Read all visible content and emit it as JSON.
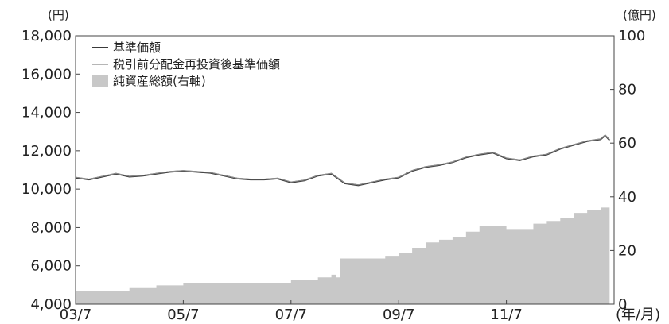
{
  "chart_data": {
    "type": "line",
    "title": "",
    "left_unit": "(円)",
    "right_unit": "(億円)",
    "x_unit": "(年/月)",
    "x_ticks": [
      "03/7",
      "05/7",
      "07/7",
      "09/7",
      "11/7"
    ],
    "y_left": {
      "min": 4000,
      "max": 18000,
      "ticks": [
        "4,000",
        "6,000",
        "8,000",
        "10,000",
        "12,000",
        "14,000",
        "16,000",
        "18,000"
      ]
    },
    "y_right": {
      "min": 0,
      "max": 100,
      "ticks": [
        "0",
        "20",
        "40",
        "60",
        "80",
        "100"
      ]
    },
    "legend_position": "top-left",
    "grid": false,
    "series": [
      {
        "name": "基準価額",
        "axis": "left",
        "color": "#3a3a3a",
        "x": [
          "2003-07",
          "2003-10",
          "2004-01",
          "2004-04",
          "2004-07",
          "2004-10",
          "2005-01",
          "2005-04",
          "2005-07",
          "2005-10",
          "2006-01",
          "2006-04",
          "2006-07",
          "2006-10",
          "2007-01",
          "2007-04",
          "2007-07",
          "2007-10",
          "2008-01",
          "2008-04",
          "2008-07",
          "2008-10",
          "2009-01",
          "2009-04",
          "2009-07",
          "2009-10",
          "2010-01",
          "2010-04",
          "2010-07",
          "2010-10",
          "2011-01",
          "2011-04",
          "2011-07",
          "2011-10",
          "2012-01",
          "2012-04",
          "2012-07",
          "2012-10",
          "2013-01",
          "2013-04",
          "2013-05",
          "2013-06"
        ],
        "values": [
          10600,
          10500,
          10650,
          10800,
          10650,
          10700,
          10800,
          10900,
          10950,
          10900,
          10850,
          10700,
          10550,
          10500,
          10500,
          10550,
          10350,
          10450,
          10700,
          10800,
          10300,
          10200,
          10350,
          10500,
          10600,
          10950,
          11150,
          11250,
          11400,
          11650,
          11800,
          11900,
          11600,
          11500,
          11700,
          11800,
          12100,
          12300,
          12500,
          12600,
          12800,
          12550
        ]
      },
      {
        "name": "税引前分配金再投資後基準価額",
        "axis": "left",
        "color": "#8a8a8a",
        "x": [
          "2003-07",
          "2003-10",
          "2004-01",
          "2004-04",
          "2004-07",
          "2004-10",
          "2005-01",
          "2005-04",
          "2005-07",
          "2005-10",
          "2006-01",
          "2006-04",
          "2006-07",
          "2006-10",
          "2007-01",
          "2007-04",
          "2007-07",
          "2007-10",
          "2008-01",
          "2008-04",
          "2008-07",
          "2008-10",
          "2009-01",
          "2009-04",
          "2009-07",
          "2009-10",
          "2010-01",
          "2010-04",
          "2010-07",
          "2010-10",
          "2011-01",
          "2011-04",
          "2011-07",
          "2011-10",
          "2012-01",
          "2012-04",
          "2012-07",
          "2012-10",
          "2013-01",
          "2013-04",
          "2013-05",
          "2013-06"
        ],
        "values": [
          10620,
          10520,
          10670,
          10820,
          10670,
          10720,
          10820,
          10920,
          10970,
          10920,
          10870,
          10720,
          10570,
          10520,
          10520,
          10570,
          10370,
          10470,
          10720,
          10820,
          10320,
          10220,
          10370,
          10520,
          10620,
          10970,
          11170,
          11270,
          11420,
          11670,
          11820,
          11920,
          11620,
          11520,
          11720,
          11820,
          12120,
          12320,
          12520,
          12620,
          12820,
          12570
        ]
      },
      {
        "name": "純資産総額(右軸)",
        "axis": "right",
        "type": "area",
        "color": "#c8c8c8",
        "x": [
          "2003-07",
          "2004-01",
          "2004-07",
          "2005-01",
          "2005-07",
          "2006-01",
          "2006-07",
          "2007-01",
          "2007-07",
          "2007-10",
          "2008-01",
          "2008-04",
          "2008-05",
          "2008-06",
          "2008-10",
          "2009-01",
          "2009-04",
          "2009-07",
          "2009-10",
          "2010-01",
          "2010-04",
          "2010-07",
          "2010-10",
          "2011-01",
          "2011-04",
          "2011-07",
          "2011-10",
          "2012-01",
          "2012-04",
          "2012-07",
          "2012-10",
          "2013-01",
          "2013-04",
          "2013-06"
        ],
        "values": [
          5,
          5,
          6,
          7,
          8,
          8,
          8,
          8,
          9,
          9,
          10,
          11,
          10,
          17,
          17,
          17,
          18,
          19,
          21,
          23,
          24,
          25,
          27,
          29,
          29,
          28,
          28,
          30,
          31,
          32,
          34,
          35,
          36,
          35
        ]
      }
    ]
  }
}
